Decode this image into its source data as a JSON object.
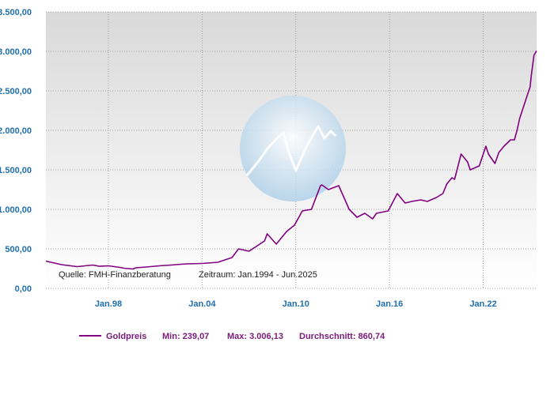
{
  "colors": {
    "series": "#800080",
    "axis_labels": "#1f6fb0",
    "legend_text": "#7a1a7a",
    "plot_bg_top": "#d9d9d9",
    "plot_bg_bottom": "#ffffff",
    "grid": "#8c8c8c"
  },
  "chart_data": {
    "type": "line",
    "title": "",
    "xlabel": "",
    "ylabel": "",
    "x_tick_labels": [
      "Jan.98",
      "Jan.04",
      "Jan.10",
      "Jan.16",
      "Jan.22"
    ],
    "y_tick_labels": [
      "0,00",
      "500,00",
      "1.000,00",
      "1.500,00",
      "2.000,00",
      "2.500,00",
      "3.000,00",
      "3.500,00"
    ],
    "xlim": [
      "1994-01",
      "2025-06"
    ],
    "ylim": [
      0,
      3500
    ],
    "grid": true,
    "legend_position": "bottom",
    "watermark_icon": "fmh-logo-icon",
    "annotations": {
      "source": "Quelle: FMH-Finanzberatung",
      "period": "Zeitraum: Jan.1994 - Jun.2025"
    },
    "series": [
      {
        "name": "Goldpreis",
        "x": [
          "1994-01",
          "1995-01",
          "1996-01",
          "1997-01",
          "1997-06",
          "1998-01",
          "1998-08",
          "1999-01",
          "1999-08",
          "1999-10",
          "2000-06",
          "2001-04",
          "2002-01",
          "2003-01",
          "2004-01",
          "2005-01",
          "2005-12",
          "2006-05",
          "2007-01",
          "2008-01",
          "2008-03",
          "2008-10",
          "2009-06",
          "2009-12",
          "2010-06",
          "2011-01",
          "2011-08",
          "2011-09",
          "2012-02",
          "2012-10",
          "2013-06",
          "2013-12",
          "2014-06",
          "2014-12",
          "2015-03",
          "2015-12",
          "2016-07",
          "2017-01",
          "2017-06",
          "2018-01",
          "2018-06",
          "2019-01",
          "2019-06",
          "2019-09",
          "2020-01",
          "2020-03",
          "2020-08",
          "2021-01",
          "2021-03",
          "2021-10",
          "2022-03",
          "2022-05",
          "2022-10",
          "2023-01",
          "2023-05",
          "2023-10",
          "2024-01",
          "2024-03",
          "2024-05",
          "2024-10",
          "2025-01",
          "2025-02",
          "2025-04",
          "2025-06"
        ],
        "values": [
          345,
          300,
          275,
          295,
          280,
          285,
          270,
          255,
          245,
          260,
          270,
          285,
          295,
          310,
          315,
          330,
          390,
          500,
          470,
          600,
          690,
          560,
          720,
          800,
          980,
          1000,
          1300,
          1310,
          1250,
          1300,
          1000,
          900,
          950,
          880,
          950,
          980,
          1200,
          1080,
          1100,
          1120,
          1100,
          1150,
          1200,
          1320,
          1400,
          1380,
          1700,
          1600,
          1500,
          1550,
          1800,
          1700,
          1580,
          1720,
          1800,
          1880,
          1880,
          2000,
          2150,
          2400,
          2550,
          2700,
          2950,
          3006
        ]
      }
    ]
  },
  "legend": {
    "series_name": "Goldpreis",
    "min_label": "Min: 239,07",
    "max_label": "Max: 3.006,13",
    "avg_label": "Durchschnitt: 860,74"
  }
}
